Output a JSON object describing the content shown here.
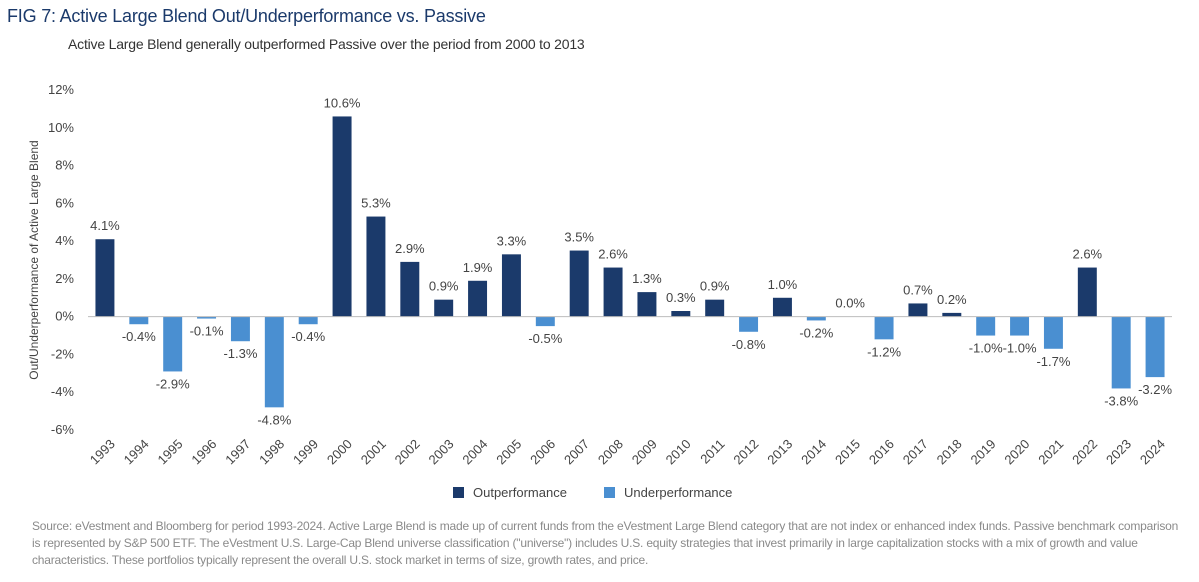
{
  "header": {
    "title": "FIG 7: Active Large Blend Out/Underperformance vs. Passive",
    "subtitle": "Active Large Blend generally outperformed Passive over the period from 2000 to 2013"
  },
  "footer": {
    "source": "Source: eVestment and Bloomberg for period 1993-2024. Active Large Blend is made up of current funds from the eVestment Large Blend category that are not index or enhanced index funds. Passive benchmark comparison is represented by S&P 500 ETF. The eVestment U.S. Large-Cap Blend universe classification (\"universe\") includes U.S. equity strategies that invest primarily in large capitalization stocks with a mix of growth and value characteristics. These portfolios typically represent the overall U.S. stock market in terms of size, growth rates, and price."
  },
  "colors": {
    "outperformance": "#1b3a6b",
    "underperformance": "#4a8fd1",
    "axis": "#bdbdbd",
    "text": "#444444"
  },
  "chart_data": {
    "type": "bar",
    "title": "FIG 7: Active Large Blend Out/Underperformance vs. Passive",
    "xlabel": "",
    "ylabel": "Out/Underperformance of Active Large Blend",
    "ylim": [
      -6,
      12
    ],
    "yticks": [
      -6,
      -4,
      -2,
      0,
      2,
      4,
      6,
      8,
      10,
      12
    ],
    "ytick_labels": [
      "-6%",
      "-4%",
      "-2%",
      "0%",
      "2%",
      "4%",
      "6%",
      "8%",
      "10%",
      "12%"
    ],
    "categories": [
      "1993",
      "1994",
      "1995",
      "1996",
      "1997",
      "1998",
      "1999",
      "2000",
      "2001",
      "2002",
      "2003",
      "2004",
      "2005",
      "2006",
      "2007",
      "2008",
      "2009",
      "2010",
      "2011",
      "2012",
      "2013",
      "2014",
      "2015",
      "2016",
      "2017",
      "2018",
      "2019",
      "2020",
      "2021",
      "2022",
      "2023",
      "2024"
    ],
    "values": [
      4.1,
      -0.4,
      -2.9,
      -0.1,
      -1.3,
      -4.8,
      -0.4,
      10.6,
      5.3,
      2.9,
      0.9,
      1.9,
      3.3,
      -0.5,
      3.5,
      2.6,
      1.3,
      0.3,
      0.9,
      -0.8,
      1.0,
      -0.2,
      0.0,
      -1.2,
      0.7,
      0.2,
      -1.0,
      -1.0,
      -1.7,
      2.6,
      -3.8,
      -3.2
    ],
    "data_labels": [
      "4.1%",
      "-0.4%",
      "-2.9%",
      "-0.1%",
      "-1.3%",
      "-4.8%",
      "-0.4%",
      "10.6%",
      "5.3%",
      "2.9%",
      "0.9%",
      "1.9%",
      "3.3%",
      "-0.5%",
      "3.5%",
      "2.6%",
      "1.3%",
      "0.3%",
      "0.9%",
      "-0.8%",
      "1.0%",
      "-0.2%",
      "0.0%",
      "-1.2%",
      "0.7%",
      "0.2%",
      "-1.0%",
      "-1.0%",
      "-1.7%",
      "2.6%",
      "-3.8%",
      "-3.2%"
    ],
    "legend": [
      "Outperformance",
      "Underperformance"
    ],
    "legend_position": "bottom-center",
    "grid": false
  }
}
